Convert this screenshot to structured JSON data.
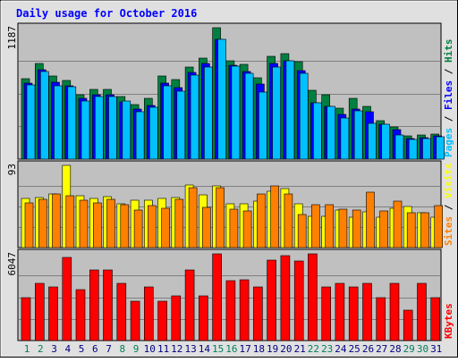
{
  "colors": {
    "background": "#E0E0E0",
    "panel": "#C0C0C0",
    "grid": "#808080",
    "title": "#0000FF",
    "hits": "#008040",
    "files": "#0000FF",
    "pages": "#00C0FF",
    "visits": "#FFFF00",
    "sites": "#FF8000",
    "kbytes": "#FF0000",
    "weekday_label": "#000080",
    "weekend_label": "#00805C"
  },
  "chart_data": {
    "type": "bar",
    "title": "Daily usage for October 2016",
    "categories": [
      "1",
      "2",
      "3",
      "4",
      "5",
      "6",
      "7",
      "8",
      "9",
      "10",
      "11",
      "12",
      "13",
      "14",
      "15",
      "16",
      "17",
      "18",
      "19",
      "20",
      "21",
      "22",
      "23",
      "24",
      "25",
      "26",
      "27",
      "28",
      "29",
      "30",
      "31"
    ],
    "weekend_days": [
      "1",
      "2",
      "8",
      "9",
      "15",
      "16",
      "22",
      "23",
      "29",
      "30"
    ],
    "grid": true,
    "panels": [
      {
        "id": "hits-files-pages",
        "ymax_label": "1187",
        "ymax": 1187,
        "right_labels": [
          {
            "text": "Pages",
            "color": "#00C0FF"
          },
          {
            "text": " / ",
            "color": "#000000"
          },
          {
            "text": "Files",
            "color": "#0000FF"
          },
          {
            "text": " / ",
            "color": "#000000"
          },
          {
            "text": "Hits",
            "color": "#008040"
          }
        ],
        "series": [
          {
            "name": "Hits",
            "color": "#008040",
            "values": [
              730,
              867,
              754,
              714,
              583,
              628,
              628,
              568,
              494,
              546,
              751,
              716,
              834,
              916,
              1187,
              890,
              858,
              732,
              928,
              954,
              878,
              619,
              583,
              460,
              550,
              477,
              348,
              293,
              208,
              219,
              227
            ]
          },
          {
            "name": "Files",
            "color": "#0000FF",
            "values": [
              690,
              805,
              693,
              665,
              546,
              579,
              585,
              519,
              453,
              487,
              683,
              643,
              783,
              861,
              1078,
              847,
              790,
              679,
              868,
              889,
              803,
              508,
              477,
              407,
              455,
              426,
              312,
              266,
              185,
              191,
              210
            ]
          },
          {
            "name": "Pages",
            "color": "#00C0FF",
            "values": [
              674,
              793,
              660,
              656,
              528,
              563,
              563,
              521,
              432,
              469,
              665,
              614,
              759,
              832,
              1078,
              841,
              775,
              602,
              832,
              888,
              777,
              506,
              475,
              373,
              439,
              320,
              312,
              220,
              177,
              187,
              203
            ]
          }
        ]
      },
      {
        "id": "sites-visits",
        "ymax_label": "93",
        "ymax": 93,
        "right_labels": [
          {
            "text": "Sites",
            "color": "#FF8000"
          },
          {
            "text": " / ",
            "color": "#000000"
          },
          {
            "text": "Visits",
            "color": "#FFFF00"
          }
        ],
        "series": [
          {
            "name": "Visits",
            "color": "#FFFF00",
            "values": [
              56,
              57,
              61,
              93,
              59,
              56,
              58,
              50,
              54,
              54,
              56,
              57,
              71,
              60,
              70,
              50,
              50,
              53,
              64,
              67,
              50,
              35,
              35,
              42,
              34,
              40,
              34,
              44,
              47,
              39,
              34
            ]
          },
          {
            "name": "Sites",
            "color": "#FF8000",
            "values": [
              51,
              55,
              61,
              59,
              54,
              51,
              55,
              49,
              42,
              48,
              44,
              55,
              68,
              45,
              68,
              43,
              41,
              61,
              70,
              61,
              37,
              49,
              49,
              43,
              42,
              63,
              41,
              53,
              39,
              39,
              48
            ]
          }
        ]
      },
      {
        "id": "kbytes",
        "ymax_label": "6047",
        "ymax": 6047,
        "right_labels": [
          {
            "text": "KBytes",
            "color": "#FF0000"
          }
        ],
        "series": [
          {
            "name": "KBytes",
            "color": "#FF0000",
            "values": [
              3009,
              3960,
              3715,
              5780,
              3562,
              4936,
              4936,
              3960,
              2762,
              3715,
              2762,
              3143,
              4936,
              3143,
              6047,
              4147,
              4257,
              3715,
              5585,
              5939,
              5518,
              6047,
              3715,
              3960,
              3715,
              3960,
              2988,
              3960,
              2105,
              3960,
              2988
            ]
          }
        ]
      }
    ]
  }
}
